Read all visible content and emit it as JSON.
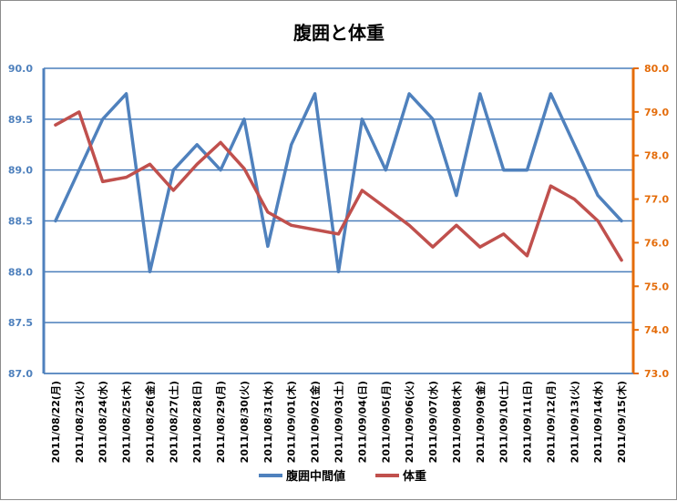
{
  "chart_data": {
    "type": "line",
    "title": "腹囲と体重",
    "categories": [
      "2011/08/22(月)",
      "2011/08/23(火)",
      "2011/08/24(水)",
      "2011/08/25(木)",
      "2011/08/26(金)",
      "2011/08/27(土)",
      "2011/08/28(日)",
      "2011/08/29(月)",
      "2011/08/30(火)",
      "2011/08/31(水)",
      "2011/09/01(木)",
      "2011/09/02(金)",
      "2011/09/03(土)",
      "2011/09/04(日)",
      "2011/09/05(月)",
      "2011/09/06(火)",
      "2011/09/07(水)",
      "2011/09/08(木)",
      "2011/09/09(金)",
      "2011/09/10(土)",
      "2011/09/11(日)",
      "2011/09/12(月)",
      "2011/09/13(火)",
      "2011/09/14(水)",
      "2011/09/15(木)"
    ],
    "series": [
      {
        "name": "腹囲中間値",
        "axis": "left",
        "color": "#4f81bd",
        "values": [
          88.5,
          89.0,
          89.5,
          89.75,
          88.0,
          89.0,
          89.25,
          89.0,
          89.5,
          88.25,
          89.25,
          89.75,
          88.0,
          89.5,
          89.0,
          89.75,
          89.5,
          88.75,
          89.75,
          89.0,
          89.0,
          89.75,
          89.25,
          88.75,
          88.5
        ]
      },
      {
        "name": "体重",
        "axis": "right",
        "color": "#c0504d",
        "values": [
          78.7,
          79.0,
          77.4,
          77.5,
          77.8,
          77.2,
          77.8,
          78.3,
          77.7,
          76.7,
          76.4,
          76.3,
          76.2,
          77.2,
          76.8,
          76.4,
          75.9,
          76.4,
          75.9,
          76.2,
          75.7,
          77.3,
          77.0,
          76.5,
          75.6
        ]
      }
    ],
    "y_left": {
      "min": 87.0,
      "max": 90.0,
      "step": 0.5,
      "tick_labels": [
        "87.0",
        "87.5",
        "88.0",
        "88.5",
        "89.0",
        "89.5",
        "90.0"
      ],
      "color": "#4f81bd"
    },
    "y_right": {
      "min": 73.0,
      "max": 80.0,
      "step": 1.0,
      "tick_labels": [
        "73.0",
        "74.0",
        "75.0",
        "76.0",
        "77.0",
        "78.0",
        "79.0",
        "80.0"
      ],
      "color": "#e46c0a"
    },
    "grid": true,
    "grid_color": "#4a7ebb",
    "legend_position": "bottom"
  }
}
